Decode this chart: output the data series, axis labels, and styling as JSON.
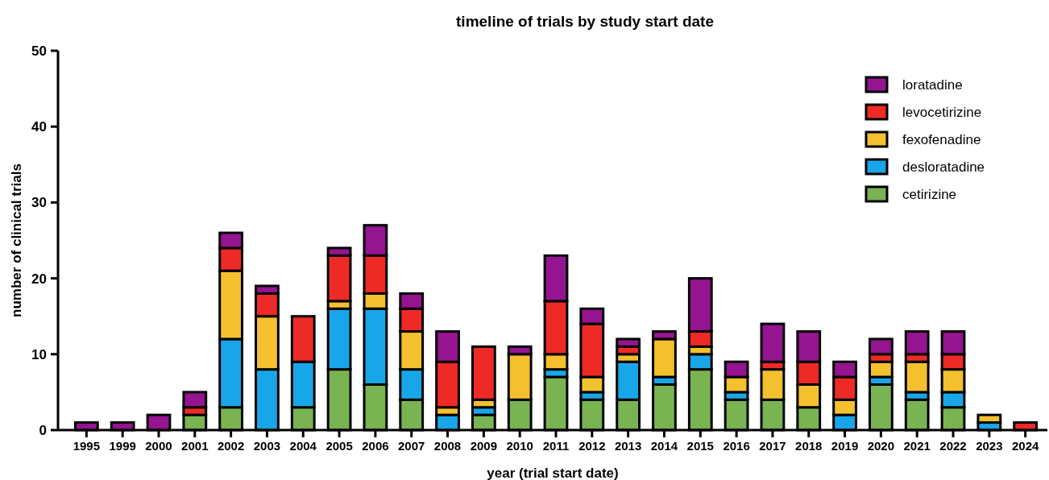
{
  "chart_data": {
    "type": "bar",
    "stacked": true,
    "title": "timeline of trials by study start date",
    "xlabel": "year (trial start date)",
    "ylabel": "number of clinical trials",
    "categories": [
      "1995",
      "1999",
      "2000",
      "2001",
      "2002",
      "2003",
      "2004",
      "2005",
      "2006",
      "2007",
      "2008",
      "2009",
      "2010",
      "2011",
      "2012",
      "2013",
      "2014",
      "2015",
      "2016",
      "2017",
      "2018",
      "2019",
      "2020",
      "2021",
      "2022",
      "2023",
      "2024"
    ],
    "ylim": [
      0,
      50
    ],
    "yticks": [
      0,
      10,
      20,
      30,
      40,
      50
    ],
    "grid": false,
    "legend": "top right",
    "series": [
      {
        "name": "cetirizine",
        "color": "#7ab351",
        "values": [
          0,
          0,
          0,
          2,
          3,
          0,
          3,
          8,
          6,
          4,
          0,
          2,
          4,
          7,
          4,
          4,
          6,
          8,
          4,
          4,
          3,
          0,
          6,
          4,
          3,
          0,
          0
        ]
      },
      {
        "name": "desloratadine",
        "color": "#19a6e8",
        "values": [
          0,
          0,
          0,
          0,
          9,
          8,
          6,
          8,
          10,
          4,
          2,
          1,
          0,
          1,
          1,
          5,
          1,
          2,
          1,
          0,
          0,
          2,
          1,
          1,
          2,
          1,
          0
        ]
      },
      {
        "name": "fexofenadine",
        "color": "#f4c02e",
        "values": [
          0,
          0,
          0,
          0,
          9,
          7,
          0,
          1,
          2,
          5,
          1,
          1,
          6,
          2,
          2,
          1,
          5,
          1,
          2,
          4,
          3,
          2,
          2,
          4,
          3,
          1,
          0
        ]
      },
      {
        "name": "levocetirizine",
        "color": "#ee2a27",
        "values": [
          0,
          0,
          0,
          1,
          3,
          3,
          6,
          6,
          5,
          3,
          6,
          7,
          0,
          7,
          7,
          1,
          0,
          2,
          0,
          1,
          3,
          3,
          1,
          1,
          2,
          0,
          1
        ]
      },
      {
        "name": "loratadine",
        "color": "#95148f",
        "values": [
          1,
          1,
          2,
          2,
          2,
          1,
          0,
          1,
          4,
          2,
          4,
          0,
          1,
          6,
          2,
          1,
          1,
          7,
          2,
          5,
          4,
          2,
          2,
          3,
          3,
          0,
          0
        ]
      }
    ]
  }
}
